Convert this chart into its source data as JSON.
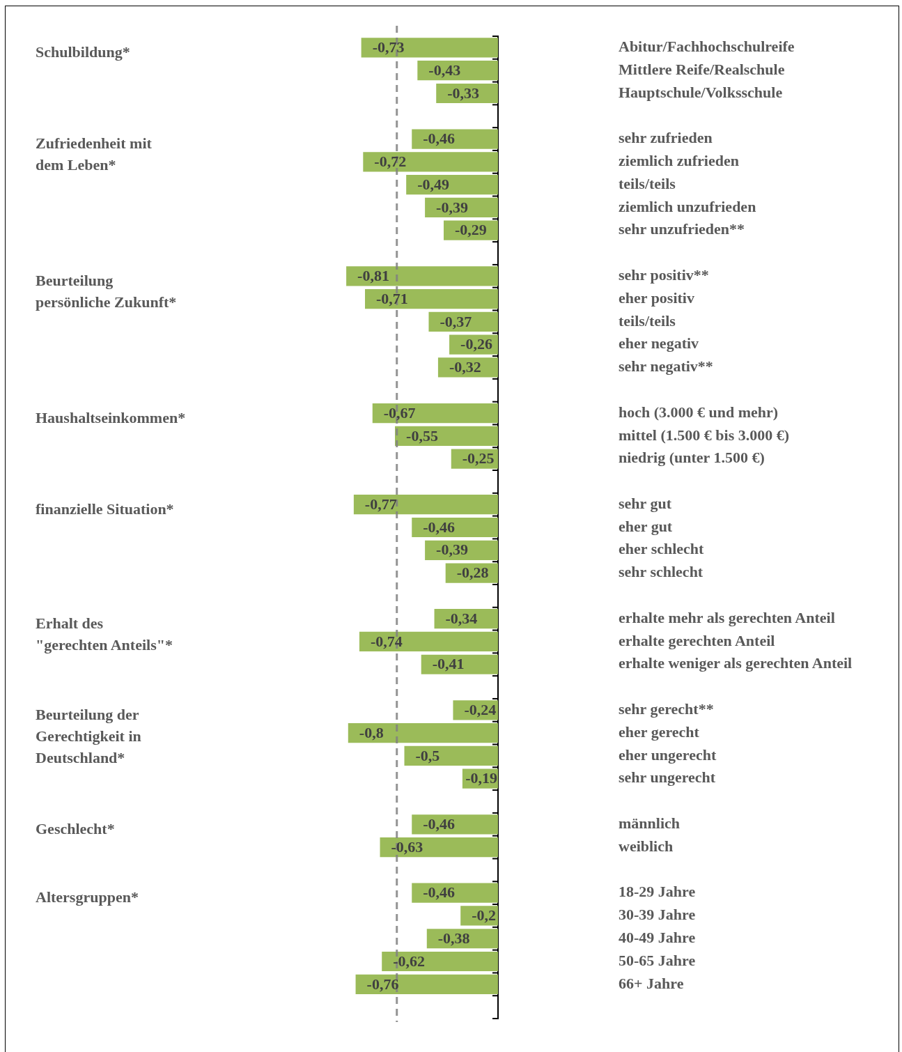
{
  "chart_data": {
    "type": "bar",
    "orientation": "horizontal",
    "tick_labels": "y",
    "color": "#9bbb59",
    "categories": [
      "Abitur/Fachhochschulreife",
      "Mittlere Reife/Realschule",
      "Hauptschule/Volksschule",
      null,
      "sehr zufrieden",
      "ziemlich zufrieden",
      "teils/teils",
      "ziemlich unzufrieden",
      "sehr unzufrieden**",
      null,
      "sehr positiv**",
      "eher positiv",
      "teils/teils",
      "eher negativ",
      "sehr negativ**",
      null,
      "hoch (3.000 € und mehr)",
      "mittel (1.500 € bis 3.000 €)",
      "niedrig (unter 1.500 €)",
      null,
      "sehr gut",
      "eher gut",
      "eher schlecht",
      "sehr schlecht",
      null,
      "erhalte mehr als gerechten Anteil",
      "erhalte gerechten Anteil",
      "erhalte weniger als gerechten Anteil",
      null,
      "sehr gerecht**",
      "eher gerecht",
      "eher ungerecht",
      "sehr ungerecht",
      null,
      "männlich",
      "weiblich",
      null,
      "18-29 Jahre",
      "30-39 Jahre",
      "40-49 Jahre",
      "50-65 Jahre",
      "66+ Jahre",
      null
    ],
    "values": [
      -0.73,
      -0.43,
      -0.33,
      null,
      -0.46,
      -0.72,
      -0.49,
      -0.39,
      -0.29,
      null,
      -0.81,
      -0.71,
      -0.37,
      -0.26,
      -0.32,
      null,
      -0.67,
      -0.55,
      -0.25,
      null,
      -0.77,
      -0.46,
      -0.39,
      -0.28,
      null,
      -0.34,
      -0.74,
      -0.41,
      null,
      -0.24,
      -0.8,
      -0.5,
      -0.19,
      null,
      -0.46,
      -0.63,
      null,
      -0.46,
      -0.2,
      -0.38,
      -0.62,
      -0.76,
      null
    ],
    "value_labels": [
      "-0,73",
      "-0,43",
      "-0,33",
      null,
      "-0,46",
      "-0,72",
      "-0,49",
      "-0,39",
      "-0,29",
      null,
      "-0,81",
      "-0,71",
      "-0,37",
      "-0,26",
      "-0,32",
      null,
      "-0,67",
      "-0,55",
      "-0,25",
      null,
      "-0,77",
      "-0,46",
      "-0,39",
      "-0,28",
      null,
      "-0,34",
      "-0,74",
      "-0,41",
      null,
      "-0,24",
      "-0,8",
      "-0,5",
      "-0,19",
      null,
      "-0,46",
      "-0,63",
      null,
      "-0,46",
      "-0,2",
      "-0,38",
      "-0,62",
      "-0,76",
      null
    ],
    "ref_lines": [
      {
        "axis": "x",
        "value": -0.54,
        "color": "#808080",
        "line_style": "dashed"
      }
    ],
    "annotations": [
      "Schulbildung*",
      "Zufriedenheit mit\ndem Leben*",
      "Beurteilung\npersönliche Zukunft*",
      "Haushaltseinkommen*",
      "finanzielle Situation*",
      "Erhalt des\n\"gerechten Anteils\"*",
      "Beurteilung der\nGerechtigkeit in\nDeutschland*",
      "Geschlecht*",
      "Altersgruppen*"
    ]
  }
}
